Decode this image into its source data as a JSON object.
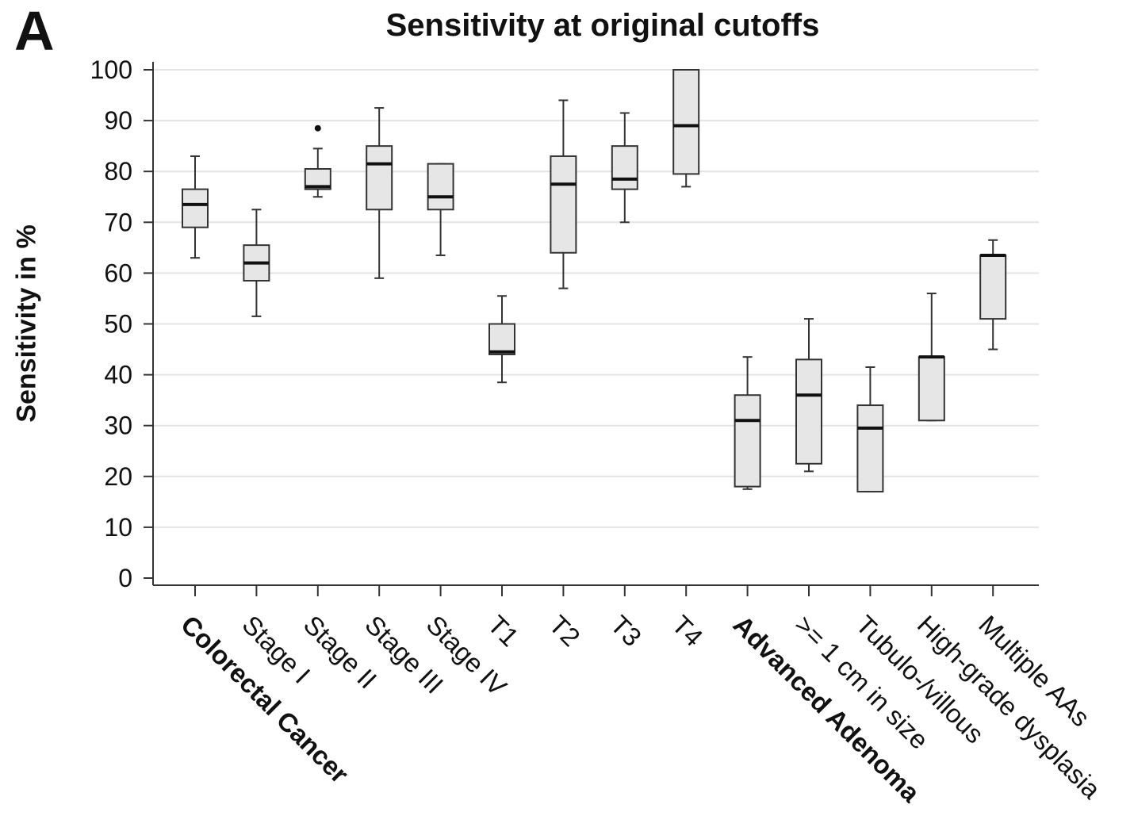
{
  "panel_label": "A",
  "chart_data": {
    "type": "box",
    "title": "Sensitivity at original cutoffs",
    "xlabel": "",
    "ylabel": "Sensitivity in %",
    "ylim": [
      0,
      100
    ],
    "yticks": [
      0,
      10,
      20,
      30,
      40,
      50,
      60,
      70,
      80,
      90,
      100
    ],
    "grid": "horizontal",
    "categories": [
      {
        "label": "Colorectal Cancer",
        "bold": true
      },
      {
        "label": "Stage I",
        "bold": false
      },
      {
        "label": "Stage II",
        "bold": false
      },
      {
        "label": "Stage III",
        "bold": false
      },
      {
        "label": "Stage IV",
        "bold": false
      },
      {
        "label": "T1",
        "bold": false
      },
      {
        "label": "T2",
        "bold": false
      },
      {
        "label": "T3",
        "bold": false
      },
      {
        "label": "T4",
        "bold": false
      },
      {
        "label": "Advanced Adenoma",
        "bold": true
      },
      {
        "label": ">= 1 cm in size",
        "bold": false
      },
      {
        "label": "Tubulo-/villous",
        "bold": false
      },
      {
        "label": "High-grade dysplasia",
        "bold": false
      },
      {
        "label": "Multiple AAs",
        "bold": false
      }
    ],
    "boxes": [
      {
        "min": 63,
        "q1": 69,
        "median": 73.5,
        "q3": 76.5,
        "max": 83,
        "outliers": []
      },
      {
        "min": 51.5,
        "q1": 58.5,
        "median": 62,
        "q3": 65.5,
        "max": 72.5,
        "outliers": []
      },
      {
        "min": 75,
        "q1": 76.5,
        "median": 77,
        "q3": 80.5,
        "max": 84.5,
        "outliers": [
          88.5
        ]
      },
      {
        "min": 59,
        "q1": 72.5,
        "median": 81.5,
        "q3": 85,
        "max": 92.5,
        "outliers": []
      },
      {
        "min": 63.5,
        "q1": 72.5,
        "median": 75,
        "q3": 81.5,
        "max": 81.5,
        "outliers": []
      },
      {
        "min": 38.5,
        "q1": 44,
        "median": 44.5,
        "q3": 50,
        "max": 55.5,
        "outliers": []
      },
      {
        "min": 57,
        "q1": 64,
        "median": 77.5,
        "q3": 83,
        "max": 94,
        "outliers": []
      },
      {
        "min": 70,
        "q1": 76.5,
        "median": 78.5,
        "q3": 85,
        "max": 91.5,
        "outliers": []
      },
      {
        "min": 77,
        "q1": 79.5,
        "median": 89,
        "q3": 100,
        "max": 100,
        "outliers": []
      },
      {
        "min": 17.5,
        "q1": 18,
        "median": 31,
        "q3": 36,
        "max": 43.5,
        "outliers": []
      },
      {
        "min": 21,
        "q1": 22.5,
        "median": 36,
        "q3": 43,
        "max": 51,
        "outliers": []
      },
      {
        "min": 17,
        "q1": 17,
        "median": 29.5,
        "q3": 34,
        "max": 41.5,
        "outliers": []
      },
      {
        "min": 31,
        "q1": 31,
        "median": 43.5,
        "q3": 43.5,
        "max": 56,
        "outliers": []
      },
      {
        "min": 45,
        "q1": 51,
        "median": 63.5,
        "q3": 63.5,
        "max": 66.5,
        "outliers": []
      }
    ],
    "colors": {
      "box_fill": "#e6e6e6",
      "box_stroke": "#333333",
      "median": "#111111",
      "grid": "#e4e4e4",
      "axis": "#333333"
    }
  }
}
